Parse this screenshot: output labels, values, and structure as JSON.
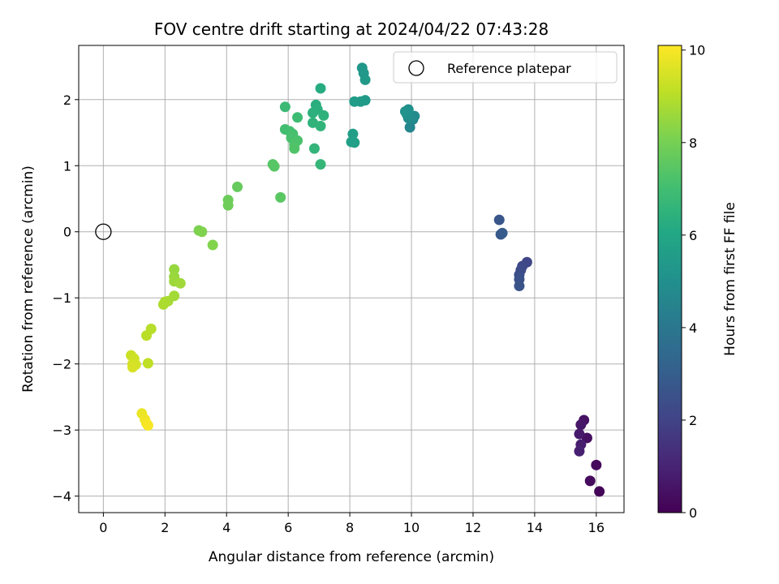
{
  "chart_data": {
    "type": "scatter",
    "title": "FOV centre drift starting at 2024/04/22 07:43:28",
    "xlabel": "Angular distance from reference (arcmin)",
    "ylabel": "Rotation from reference (arcmin)",
    "xlim": [
      -0.8,
      16.9
    ],
    "ylim": [
      -4.25,
      2.82
    ],
    "xticks": [
      0,
      2,
      4,
      6,
      8,
      10,
      12,
      14,
      16
    ],
    "yticks": [
      -4,
      -3,
      -2,
      -1,
      0,
      1,
      2
    ],
    "xtick_labels": [
      "0",
      "2",
      "4",
      "6",
      "8",
      "10",
      "12",
      "14",
      "16"
    ],
    "ytick_labels": [
      "−4",
      "−3",
      "−2",
      "−1",
      "0",
      "1",
      "2"
    ],
    "grid": true,
    "legend": {
      "position": "top-right",
      "entries": [
        "Reference platepar"
      ]
    },
    "reference_point": {
      "x": 0,
      "y": 0,
      "marker": "open-circle"
    },
    "colorbar": {
      "label": "Hours from first FF file",
      "colormap": "viridis",
      "range": [
        0,
        10.1
      ],
      "ticks": [
        0,
        2,
        4,
        6,
        8,
        10
      ],
      "tick_labels": [
        "0",
        "2",
        "4",
        "6",
        "8",
        "10"
      ]
    },
    "points": [
      {
        "x": 16.1,
        "y": -3.93,
        "t": 0.1
      },
      {
        "x": 16.0,
        "y": -3.53,
        "t": 0.2
      },
      {
        "x": 15.8,
        "y": -3.77,
        "t": 0.3
      },
      {
        "x": 15.7,
        "y": -3.12,
        "t": 0.4
      },
      {
        "x": 15.6,
        "y": -2.85,
        "t": 0.5
      },
      {
        "x": 15.5,
        "y": -2.92,
        "t": 0.6
      },
      {
        "x": 15.45,
        "y": -3.06,
        "t": 0.7
      },
      {
        "x": 15.5,
        "y": -3.22,
        "t": 0.8
      },
      {
        "x": 15.45,
        "y": -3.32,
        "t": 0.9
      },
      {
        "x": 13.75,
        "y": -0.46,
        "t": 2.1
      },
      {
        "x": 13.6,
        "y": -0.52,
        "t": 2.2
      },
      {
        "x": 13.55,
        "y": -0.58,
        "t": 2.3
      },
      {
        "x": 13.5,
        "y": -0.65,
        "t": 2.4
      },
      {
        "x": 13.5,
        "y": -0.72,
        "t": 2.5
      },
      {
        "x": 13.5,
        "y": -0.82,
        "t": 2.6
      },
      {
        "x": 12.85,
        "y": 0.18,
        "t": 2.7
      },
      {
        "x": 12.9,
        "y": -0.04,
        "t": 2.8
      },
      {
        "x": 12.95,
        "y": -0.02,
        "t": 2.9
      },
      {
        "x": 9.95,
        "y": 1.58,
        "t": 4.6
      },
      {
        "x": 10.05,
        "y": 1.7,
        "t": 4.7
      },
      {
        "x": 10.1,
        "y": 1.75,
        "t": 4.8
      },
      {
        "x": 9.9,
        "y": 1.72,
        "t": 4.9
      },
      {
        "x": 9.85,
        "y": 1.78,
        "t": 5.0
      },
      {
        "x": 9.9,
        "y": 1.85,
        "t": 5.0
      },
      {
        "x": 9.8,
        "y": 1.82,
        "t": 5.1
      },
      {
        "x": 8.4,
        "y": 2.48,
        "t": 5.3
      },
      {
        "x": 8.45,
        "y": 2.4,
        "t": 5.35
      },
      {
        "x": 8.5,
        "y": 2.3,
        "t": 5.4
      },
      {
        "x": 8.5,
        "y": 1.99,
        "t": 5.45
      },
      {
        "x": 8.35,
        "y": 1.97,
        "t": 5.5
      },
      {
        "x": 8.15,
        "y": 1.97,
        "t": 5.55
      },
      {
        "x": 8.1,
        "y": 1.48,
        "t": 5.6
      },
      {
        "x": 8.05,
        "y": 1.36,
        "t": 5.65
      },
      {
        "x": 8.15,
        "y": 1.35,
        "t": 5.7
      },
      {
        "x": 7.05,
        "y": 2.17,
        "t": 6.2
      },
      {
        "x": 6.9,
        "y": 1.92,
        "t": 6.3
      },
      {
        "x": 6.95,
        "y": 1.85,
        "t": 6.35
      },
      {
        "x": 6.8,
        "y": 1.8,
        "t": 6.4
      },
      {
        "x": 7.15,
        "y": 1.76,
        "t": 6.45
      },
      {
        "x": 6.8,
        "y": 1.65,
        "t": 6.5
      },
      {
        "x": 7.05,
        "y": 1.6,
        "t": 6.55
      },
      {
        "x": 6.85,
        "y": 1.26,
        "t": 6.6
      },
      {
        "x": 7.05,
        "y": 1.02,
        "t": 6.65
      },
      {
        "x": 5.9,
        "y": 1.89,
        "t": 6.8
      },
      {
        "x": 6.3,
        "y": 1.73,
        "t": 6.9
      },
      {
        "x": 5.9,
        "y": 1.55,
        "t": 7.0
      },
      {
        "x": 6.05,
        "y": 1.52,
        "t": 7.05
      },
      {
        "x": 6.15,
        "y": 1.48,
        "t": 7.1
      },
      {
        "x": 6.1,
        "y": 1.42,
        "t": 7.15
      },
      {
        "x": 6.3,
        "y": 1.38,
        "t": 7.2
      },
      {
        "x": 6.2,
        "y": 1.32,
        "t": 7.25
      },
      {
        "x": 6.2,
        "y": 1.26,
        "t": 7.3
      },
      {
        "x": 5.5,
        "y": 1.02,
        "t": 7.4
      },
      {
        "x": 5.55,
        "y": 0.99,
        "t": 7.45
      },
      {
        "x": 5.75,
        "y": 0.52,
        "t": 7.5
      },
      {
        "x": 4.35,
        "y": 0.68,
        "t": 7.7
      },
      {
        "x": 4.05,
        "y": 0.48,
        "t": 7.8
      },
      {
        "x": 4.05,
        "y": 0.4,
        "t": 7.85
      },
      {
        "x": 3.1,
        "y": 0.02,
        "t": 8.1
      },
      {
        "x": 3.2,
        "y": 0.0,
        "t": 8.15
      },
      {
        "x": 3.55,
        "y": -0.2,
        "t": 8.2
      },
      {
        "x": 2.3,
        "y": -0.57,
        "t": 8.5
      },
      {
        "x": 2.3,
        "y": -0.68,
        "t": 8.55
      },
      {
        "x": 2.3,
        "y": -0.75,
        "t": 8.6
      },
      {
        "x": 2.5,
        "y": -0.78,
        "t": 8.65
      },
      {
        "x": 2.3,
        "y": -0.97,
        "t": 8.7
      },
      {
        "x": 2.1,
        "y": -1.05,
        "t": 8.75
      },
      {
        "x": 2.0,
        "y": -1.06,
        "t": 8.8
      },
      {
        "x": 1.95,
        "y": -1.1,
        "t": 8.85
      },
      {
        "x": 1.55,
        "y": -1.47,
        "t": 9.0
      },
      {
        "x": 1.4,
        "y": -1.57,
        "t": 9.05
      },
      {
        "x": 1.45,
        "y": -1.99,
        "t": 9.1
      },
      {
        "x": 0.9,
        "y": -1.87,
        "t": 9.3
      },
      {
        "x": 1.0,
        "y": -1.92,
        "t": 9.35
      },
      {
        "x": 0.95,
        "y": -2.0,
        "t": 9.4
      },
      {
        "x": 1.05,
        "y": -2.01,
        "t": 9.45
      },
      {
        "x": 0.95,
        "y": -2.05,
        "t": 9.5
      },
      {
        "x": 1.25,
        "y": -2.75,
        "t": 9.8
      },
      {
        "x": 1.35,
        "y": -2.84,
        "t": 9.9
      },
      {
        "x": 1.4,
        "y": -2.9,
        "t": 9.95
      },
      {
        "x": 1.45,
        "y": -2.93,
        "t": 10.0
      }
    ]
  }
}
